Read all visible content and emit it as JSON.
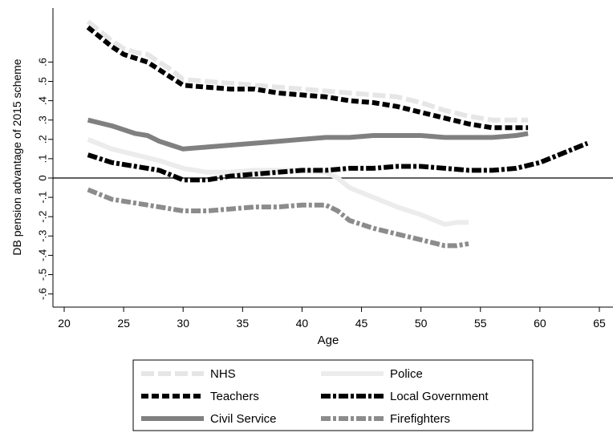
{
  "chart_data": {
    "type": "line",
    "title": "",
    "xlabel": "Age",
    "ylabel": "DB pension advantage of 2015 scheme",
    "xlim": [
      20,
      65
    ],
    "ylim": [
      -0.6,
      0.8
    ],
    "xticks": [
      20,
      25,
      30,
      35,
      40,
      45,
      50,
      55,
      60,
      65
    ],
    "yticks": [
      -0.6,
      -0.5,
      -0.4,
      -0.3,
      -0.2,
      -0.1,
      0,
      0.1,
      0.2,
      0.3,
      0.4,
      0.5,
      0.6
    ],
    "x_tick_labels": [
      "20",
      "25",
      "30",
      "35",
      "40",
      "45",
      "50",
      "55",
      "60",
      "65"
    ],
    "y_tick_labels": [
      "-.6",
      "-.5",
      "-.4",
      "-.3",
      "-.2",
      "-.1",
      "0",
      ".1",
      ".2",
      ".3",
      ".4",
      ".5",
      ".6"
    ],
    "reference_line_y": 0,
    "grid": false,
    "legend_position": "bottom",
    "series": [
      {
        "name": "NHS",
        "color": "#e6e6e6",
        "dash": "long-dash",
        "x": [
          22,
          23,
          24,
          25,
          26,
          27,
          28,
          29,
          30,
          32,
          34,
          36,
          38,
          40,
          42,
          44,
          46,
          48,
          50,
          52,
          54,
          56,
          58,
          59
        ],
        "y": [
          0.81,
          0.76,
          0.71,
          0.67,
          0.65,
          0.64,
          0.6,
          0.56,
          0.51,
          0.5,
          0.49,
          0.48,
          0.47,
          0.46,
          0.45,
          0.44,
          0.43,
          0.42,
          0.39,
          0.35,
          0.32,
          0.3,
          0.3,
          0.3
        ]
      },
      {
        "name": "Teachers",
        "color": "#000000",
        "dash": "short-dash",
        "x": [
          22,
          23,
          24,
          25,
          26,
          27,
          28,
          29,
          30,
          32,
          34,
          36,
          38,
          40,
          42,
          44,
          46,
          48,
          50,
          52,
          54,
          56,
          58,
          59
        ],
        "y": [
          0.78,
          0.73,
          0.68,
          0.64,
          0.62,
          0.6,
          0.56,
          0.52,
          0.48,
          0.47,
          0.46,
          0.46,
          0.44,
          0.43,
          0.42,
          0.4,
          0.39,
          0.37,
          0.34,
          0.31,
          0.28,
          0.26,
          0.26,
          0.26
        ]
      },
      {
        "name": "Civil Service",
        "color": "#808080",
        "dash": "solid",
        "x": [
          22,
          24,
          26,
          27,
          28,
          29,
          30,
          32,
          34,
          36,
          38,
          40,
          42,
          44,
          46,
          48,
          50,
          52,
          54,
          56,
          58,
          59
        ],
        "y": [
          0.3,
          0.27,
          0.23,
          0.22,
          0.19,
          0.17,
          0.15,
          0.16,
          0.17,
          0.18,
          0.19,
          0.2,
          0.21,
          0.21,
          0.22,
          0.22,
          0.22,
          0.21,
          0.21,
          0.21,
          0.22,
          0.23
        ]
      },
      {
        "name": "Police",
        "color": "#ececec",
        "dash": "solid",
        "x": [
          22,
          24,
          26,
          28,
          30,
          32,
          34,
          36,
          38,
          40,
          42,
          43,
          44,
          46,
          48,
          50,
          52,
          53,
          54
        ],
        "y": [
          0.2,
          0.15,
          0.12,
          0.09,
          0.05,
          0.03,
          0.03,
          0.04,
          0.04,
          0.04,
          0.03,
          0.0,
          -0.05,
          -0.1,
          -0.15,
          -0.19,
          -0.24,
          -0.23,
          -0.23
        ]
      },
      {
        "name": "Local Government",
        "color": "#000000",
        "dash": "dash-dot",
        "x": [
          22,
          24,
          26,
          28,
          30,
          32,
          34,
          36,
          38,
          40,
          42,
          44,
          46,
          48,
          50,
          52,
          54,
          56,
          58,
          60,
          62,
          64
        ],
        "y": [
          0.12,
          0.08,
          0.06,
          0.04,
          -0.01,
          -0.01,
          0.01,
          0.02,
          0.03,
          0.04,
          0.04,
          0.05,
          0.05,
          0.06,
          0.06,
          0.05,
          0.04,
          0.04,
          0.05,
          0.08,
          0.13,
          0.18
        ]
      },
      {
        "name": "Firefighters",
        "color": "#8c8c8c",
        "dash": "dash-dot",
        "x": [
          22,
          24,
          26,
          28,
          30,
          32,
          34,
          36,
          38,
          40,
          42,
          43,
          44,
          46,
          48,
          50,
          52,
          53,
          54
        ],
        "y": [
          -0.06,
          -0.11,
          -0.13,
          -0.15,
          -0.17,
          -0.17,
          -0.16,
          -0.15,
          -0.15,
          -0.14,
          -0.14,
          -0.17,
          -0.22,
          -0.26,
          -0.29,
          -0.32,
          -0.35,
          -0.35,
          -0.34
        ]
      }
    ]
  }
}
